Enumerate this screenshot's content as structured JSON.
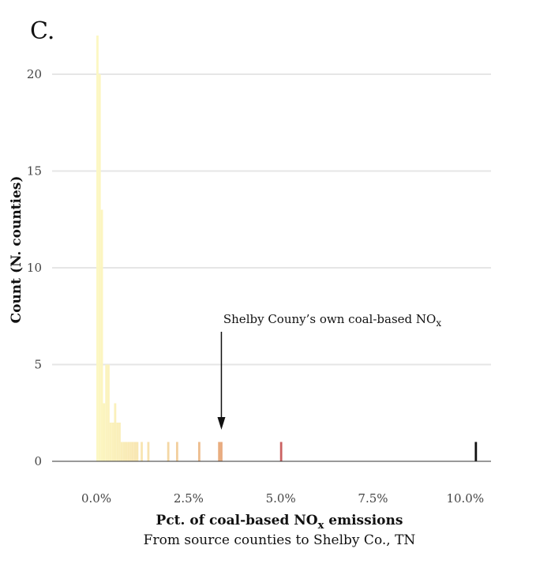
{
  "panel_label": "C.",
  "chart_data": {
    "type": "bar",
    "subtype": "histogram",
    "xlabel_main": "Pct. of coal-based NO",
    "xlabel_sub": "x",
    "xlabel_tail": " emissions",
    "subtitle": "From source counties to Shelby Co., TN",
    "ylabel": "Count (N. counties)",
    "xlim": [
      -0.012,
      0.107
    ],
    "ylim": [
      0,
      22
    ],
    "grid": true,
    "x_ticks": [
      {
        "value": 0.0,
        "label": "0.0%"
      },
      {
        "value": 0.025,
        "label": "2.5%"
      },
      {
        "value": 0.05,
        "label": "5.0%"
      },
      {
        "value": 0.075,
        "label": "7.5%"
      },
      {
        "value": 0.1,
        "label": "10.0%"
      }
    ],
    "y_ticks": [
      {
        "value": 0,
        "label": "0"
      },
      {
        "value": 5,
        "label": "5"
      },
      {
        "value": 10,
        "label": "10"
      },
      {
        "value": 15,
        "label": "15"
      },
      {
        "value": 20,
        "label": "20"
      }
    ],
    "bin_width": 0.0006,
    "bins": [
      {
        "x": 0.0,
        "count": 22
      },
      {
        "x": 0.0006,
        "count": 20
      },
      {
        "x": 0.0012,
        "count": 13
      },
      {
        "x": 0.0018,
        "count": 3
      },
      {
        "x": 0.0024,
        "count": 5
      },
      {
        "x": 0.003,
        "count": 5
      },
      {
        "x": 0.0036,
        "count": 2
      },
      {
        "x": 0.0042,
        "count": 2
      },
      {
        "x": 0.0048,
        "count": 3
      },
      {
        "x": 0.0054,
        "count": 2
      },
      {
        "x": 0.006,
        "count": 2
      },
      {
        "x": 0.0066,
        "count": 1
      },
      {
        "x": 0.0072,
        "count": 1
      },
      {
        "x": 0.0078,
        "count": 1
      },
      {
        "x": 0.0084,
        "count": 1
      },
      {
        "x": 0.009,
        "count": 1
      },
      {
        "x": 0.0096,
        "count": 1
      },
      {
        "x": 0.0102,
        "count": 1
      },
      {
        "x": 0.0108,
        "count": 1
      },
      {
        "x": 0.012,
        "count": 1
      },
      {
        "x": 0.0138,
        "count": 1
      },
      {
        "x": 0.0192,
        "count": 1
      },
      {
        "x": 0.0216,
        "count": 1
      },
      {
        "x": 0.0276,
        "count": 1
      },
      {
        "x": 0.033,
        "count": 1
      },
      {
        "x": 0.0336,
        "count": 1
      },
      {
        "x": 0.0498,
        "count": 1
      },
      {
        "x": 0.1026,
        "count": 1
      }
    ],
    "annotation": {
      "text_main": "Shelby Couny’s own coal-based NO",
      "text_sub": "x",
      "x": 0.0336
    },
    "colors": {
      "grid": "#e6e6e6",
      "axis": "#333333",
      "ramp": [
        "#fcf7c2",
        "#f6ddaa",
        "#e8a97c",
        "#c85a5e",
        "#8c3a72",
        "#4b2467",
        "#111111"
      ]
    }
  }
}
